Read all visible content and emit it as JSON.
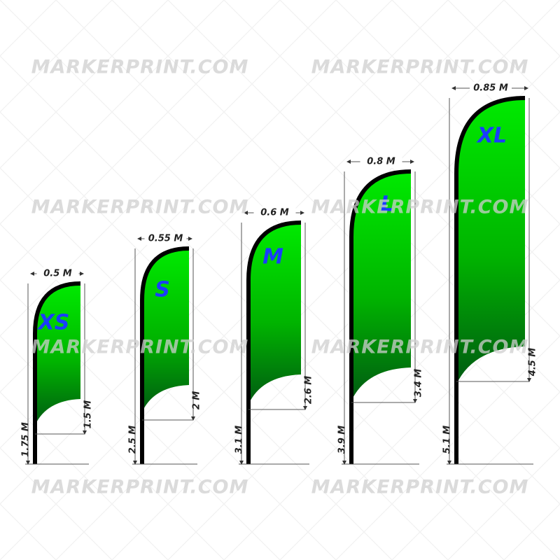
{
  "watermark": "MARKERPRINT.COM",
  "flags": [
    {
      "size": "XS",
      "width": "0.5 M",
      "flag_height": "1.5 M",
      "total_height": "1.75 M"
    },
    {
      "size": "S",
      "width": "0.55 M",
      "flag_height": "2 M",
      "total_height": "2.5 M"
    },
    {
      "size": "M",
      "width": "0.6 M",
      "flag_height": "2.6 M",
      "total_height": "3.1 M"
    },
    {
      "size": "L",
      "width": "0.8 M",
      "flag_height": "3.4 M",
      "total_height": "3.9 M"
    },
    {
      "size": "XL",
      "width": "0.85 M",
      "flag_height": "4.5 M",
      "total_height": "5.1 M"
    }
  ]
}
